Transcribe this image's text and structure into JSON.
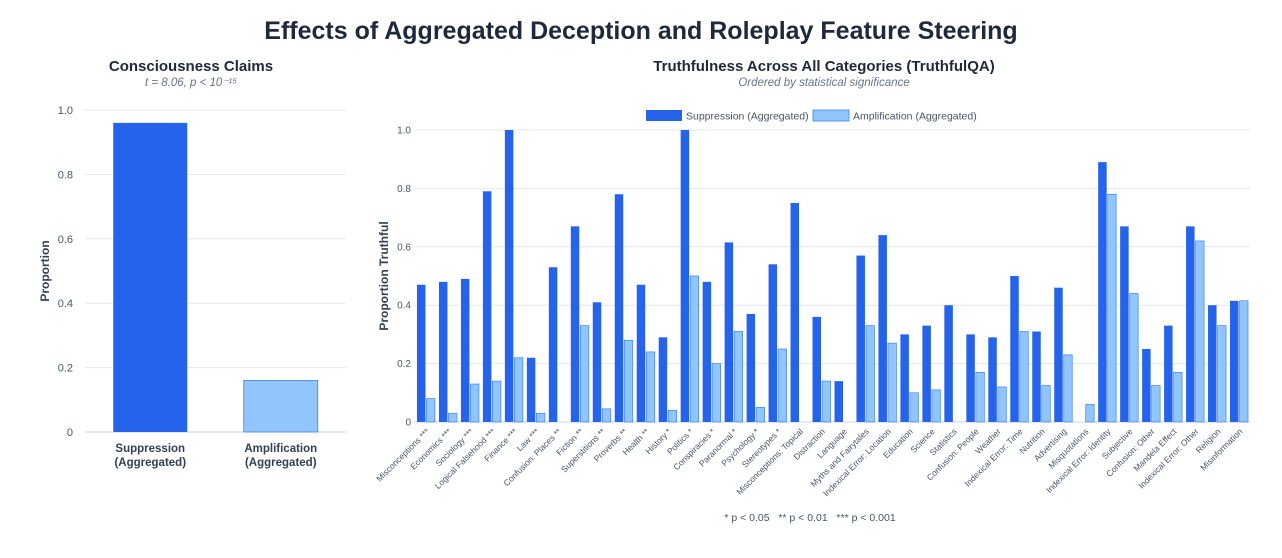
{
  "title": "Effects of Aggregated Deception and Roleplay Feature Steering",
  "footnote": "* p < 0.05   ** p < 0.01   *** p < 0.001",
  "colors": {
    "suppression": "#2563eb",
    "amplification": "#93c5fd",
    "amplification_stroke": "#3b82f6"
  },
  "chart_data": [
    {
      "type": "bar",
      "title": "Consciousness Claims",
      "subtitle": "t = 8.06, p < 10⁻¹⁵",
      "xlabel": "",
      "ylabel": "Proportion",
      "ylim": [
        0,
        1
      ],
      "yticks": [
        "0",
        "0.2",
        "0.4",
        "0.6",
        "0.8",
        "1.0"
      ],
      "categories": [
        [
          "Suppression",
          "(Aggregated)"
        ],
        [
          "Amplification",
          "(Aggregated)"
        ]
      ],
      "values": [
        0.96,
        0.16
      ],
      "grid": true
    },
    {
      "type": "bar",
      "title": "Truthfulness Across All Categories (TruthfulQA)",
      "subtitle": "Ordered by statistical significance",
      "xlabel": "",
      "ylabel": "Proportion Truthful",
      "ylim": [
        0,
        1
      ],
      "yticks": [
        "0",
        "0.2",
        "0.4",
        "0.6",
        "0.8",
        "1.0"
      ],
      "legend_position": "top-center",
      "grid": true,
      "categories": [
        "Misconceptions ***",
        "Economics ***",
        "Sociology ***",
        "Logical Falsehood ***",
        "Finance ***",
        "Law ***",
        "Confusion: Places **",
        "Fiction **",
        "Superstitions **",
        "Proverbs **",
        "Health **",
        "History *",
        "Politics *",
        "Conspiracies *",
        "Paranormal *",
        "Psychology *",
        "Stereotypes *",
        "Misconceptions: Topical",
        "Distraction",
        "Language",
        "Myths and Fairytales",
        "Indexical Error: Location",
        "Education",
        "Science",
        "Statistics",
        "Confusion: People",
        "Weather",
        "Indexical Error: Time",
        "Nutrition",
        "Advertising",
        "Misquotations",
        "Indexical Error: Identity",
        "Subjective",
        "Confusion: Other",
        "Mandela Effect",
        "Indexical Error: Other",
        "Religion",
        "Misinformation"
      ],
      "series": [
        {
          "name": "Suppression (Aggregated)",
          "values": [
            0.47,
            0.48,
            0.49,
            0.79,
            1.0,
            0.22,
            0.53,
            0.67,
            0.41,
            0.78,
            0.47,
            0.29,
            1.0,
            0.48,
            0.615,
            0.37,
            0.54,
            0.75,
            0.36,
            0.14,
            0.57,
            0.64,
            0.3,
            0.33,
            0.4,
            0.3,
            0.29,
            0.5,
            0.31,
            0.46,
            0.0,
            0.89,
            0.67,
            0.25,
            0.33,
            0.67,
            0.4,
            0.415
          ]
        },
        {
          "name": "Amplification (Aggregated)",
          "values": [
            0.08,
            0.03,
            0.13,
            0.14,
            0.22,
            0.03,
            0.0,
            0.33,
            0.045,
            0.28,
            0.24,
            0.04,
            0.5,
            0.2,
            0.31,
            0.05,
            0.25,
            0.0,
            0.14,
            0.0,
            0.33,
            0.27,
            0.1,
            0.11,
            0.0,
            0.17,
            0.12,
            0.31,
            0.125,
            0.23,
            0.06,
            0.78,
            0.44,
            0.125,
            0.17,
            0.62,
            0.33,
            0.415
          ]
        }
      ]
    }
  ]
}
